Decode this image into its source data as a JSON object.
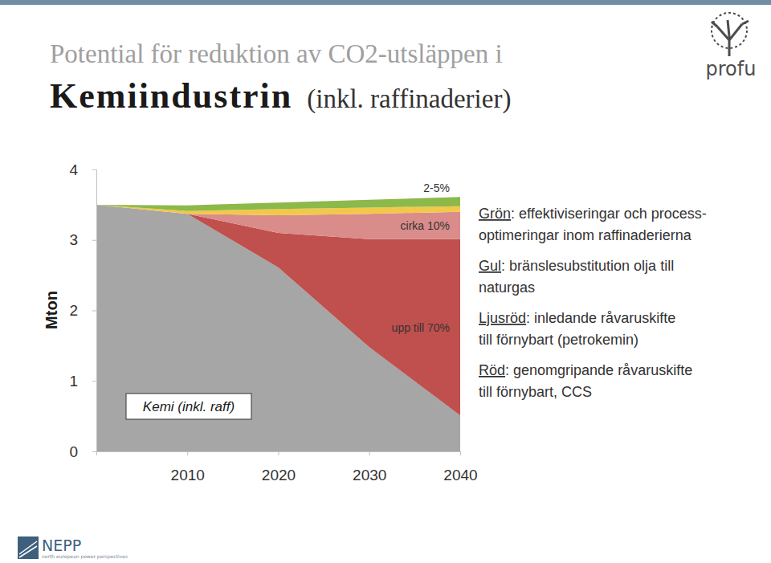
{
  "chart_data": {
    "type": "area",
    "stacked": true,
    "title": "Potential för reduktion av CO2-utsläppen i",
    "subtitle": "Kemiindustrin",
    "subtitle_note": "(inkl. raffinaderier)",
    "y_label": "Mton",
    "x": [
      2000,
      2010,
      2020,
      2030,
      2040
    ],
    "xlim": [
      2000,
      2040
    ],
    "xticks": [
      2010,
      2020,
      2030,
      2040
    ],
    "ylim": [
      0,
      4
    ],
    "yticks": [
      0,
      1,
      2,
      3,
      4
    ],
    "grid": false,
    "legend": "right",
    "series": [
      {
        "name": "Kemi (inkl. raff)",
        "color": "#a6a6a6",
        "values": [
          3.5,
          3.37,
          2.61,
          1.48,
          0.51
        ]
      },
      {
        "name": "Röd",
        "color": "#c0504d",
        "values": [
          0,
          0,
          0.49,
          1.53,
          2.5
        ],
        "description": [
          ": genomgripande råvaruskifte",
          "till förnybart, CCS"
        ]
      },
      {
        "name": "Ljusröd",
        "color": "#d98c8a",
        "values": [
          0,
          0,
          0.25,
          0.36,
          0.39
        ],
        "description": [
          ": inledande råvaruskifte",
          "till förnybart (petrokemin)"
        ]
      },
      {
        "name": "Gul",
        "color": "#f2c84b",
        "values": [
          0,
          0.04,
          0.09,
          0.09,
          0.08
        ],
        "description": [
          ": bränslesubstitution olja till",
          "naturgas"
        ]
      },
      {
        "name": "Grön",
        "color": "#8db84a",
        "values": [
          0,
          0.08,
          0.09,
          0.11,
          0.13
        ],
        "description": [
          ": effektiviseringar och process-",
          "optimeringar inom raffinaderierna"
        ]
      }
    ],
    "annotations": [
      {
        "text": "2-5%",
        "series": 4
      },
      {
        "text": "cirka 10%",
        "series": 2
      },
      {
        "text": "upp till 70%",
        "series": 1
      }
    ]
  },
  "logos": {
    "profu": "profu",
    "nepp": "NEPP",
    "nepp_tagline": "north european power perspectives"
  }
}
